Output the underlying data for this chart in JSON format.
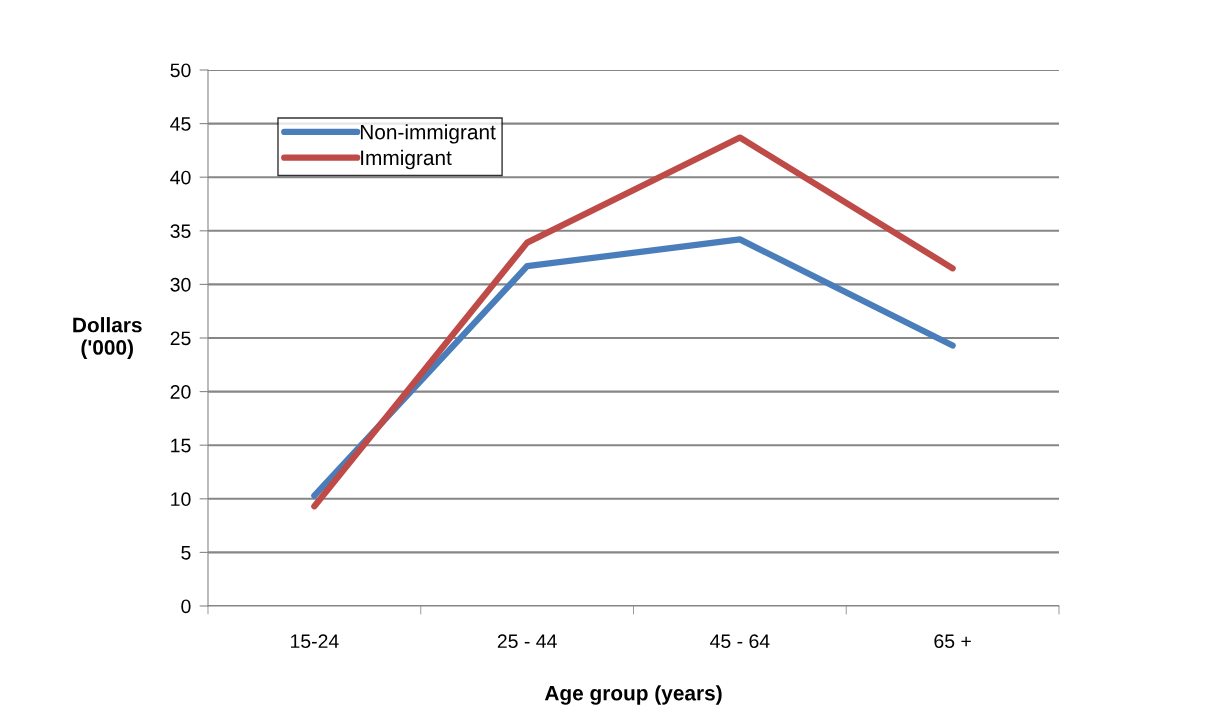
{
  "chart_data": {
    "type": "line",
    "xlabel": "Age group (years)",
    "ylabel": "Dollars\n('000)",
    "categories": [
      "15-24",
      "25 - 44",
      "45 - 64",
      "65 +"
    ],
    "series": [
      {
        "name": "Non-immigrant",
        "color": "#4a7ebb",
        "values": [
          10.3,
          31.7,
          34.2,
          24.3
        ]
      },
      {
        "name": "Immigrant",
        "color": "#be4b48",
        "values": [
          9.3,
          33.9,
          43.7,
          31.5
        ]
      }
    ],
    "ylim": [
      0,
      50
    ],
    "yticks": [
      0,
      5,
      10,
      15,
      20,
      25,
      30,
      35,
      40,
      45,
      50
    ],
    "grid": "y",
    "legend": "top left",
    "marker": "none",
    "line_style": "solid"
  }
}
